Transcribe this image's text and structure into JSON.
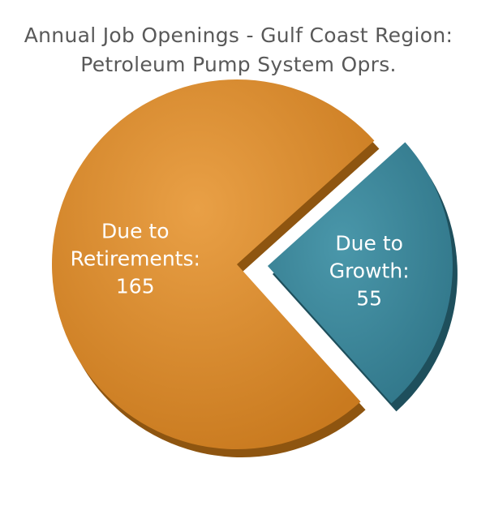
{
  "title_line1": "Annual Job Openings - Gulf Coast Region:",
  "title_line2": "Petroleum Pump System Oprs.",
  "chart_data": {
    "type": "pie",
    "title": "Annual Job Openings - Gulf Coast Region: Petroleum Pump System Oprs.",
    "slices": [
      {
        "label_lines": [
          "Due to",
          "Retirements:",
          "165"
        ],
        "value": 165,
        "color": "#D98A2B",
        "exploded": false
      },
      {
        "label_lines": [
          "Due to",
          "Growth:",
          "55"
        ],
        "value": 55,
        "color": "#3E8799",
        "exploded": true
      }
    ],
    "legend": "none"
  }
}
